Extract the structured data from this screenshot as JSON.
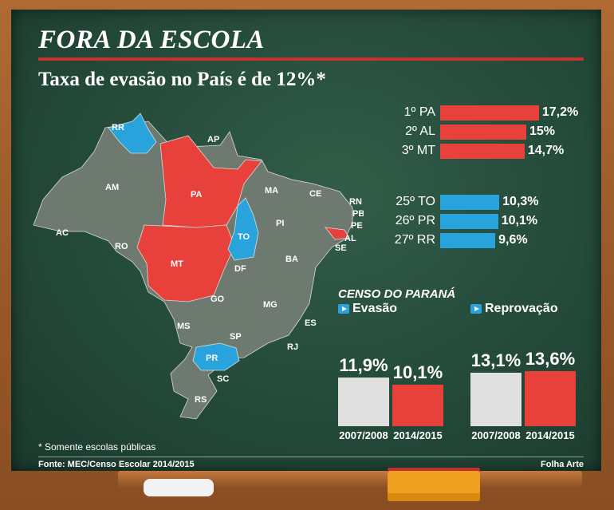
{
  "title": "FORA DA ESCOLA",
  "subtitle": "Taxa de evasão no País é de 12%*",
  "ranking": {
    "top": [
      {
        "label": "1º PA",
        "value": "17,2%",
        "num": 17.2
      },
      {
        "label": "2º AL",
        "value": "15%",
        "num": 15.0
      },
      {
        "label": "3º MT",
        "value": "14,7%",
        "num": 14.7
      }
    ],
    "bottom": [
      {
        "label": "25º TO",
        "value": "10,3%",
        "num": 10.3
      },
      {
        "label": "26º PR",
        "value": "10,1%",
        "num": 10.1
      },
      {
        "label": "27º RR",
        "value": "9,6%",
        "num": 9.6
      }
    ]
  },
  "map": {
    "states": [
      "RR",
      "AP",
      "AM",
      "PA",
      "MA",
      "CE",
      "RN",
      "PB",
      "PE",
      "AL",
      "SE",
      "PI",
      "AC",
      "RO",
      "TO",
      "BA",
      "MT",
      "DF",
      "GO",
      "MG",
      "ES",
      "MS",
      "SP",
      "RJ",
      "PR",
      "SC",
      "RS"
    ],
    "highlight_red": [
      "PA",
      "MT",
      "AL"
    ],
    "highlight_blue": [
      "RR",
      "TO",
      "PR"
    ]
  },
  "censo": {
    "title": "CENSO DO PARANÁ",
    "legend_evasao": "Evasão",
    "legend_reprovacao": "Reprovação"
  },
  "chart_data": {
    "type": "bar",
    "title": "CENSO DO PARANÁ",
    "categories": [
      "2007/2008",
      "2014/2015"
    ],
    "series": [
      {
        "name": "Evasão",
        "values": [
          11.9,
          10.1
        ],
        "labels": [
          "11,9%",
          "10,1%"
        ]
      },
      {
        "name": "Reprovação",
        "values": [
          13.1,
          13.6
        ],
        "labels": [
          "13,1%",
          "13,6%"
        ]
      }
    ],
    "colors": {
      "older": "#e0e0e0",
      "newer": "#e8403a"
    }
  },
  "footnote": "* Somente escolas públicas",
  "source": "Fonte: MEC/Censo Escolar 2014/2015",
  "credit": "Folha Arte"
}
